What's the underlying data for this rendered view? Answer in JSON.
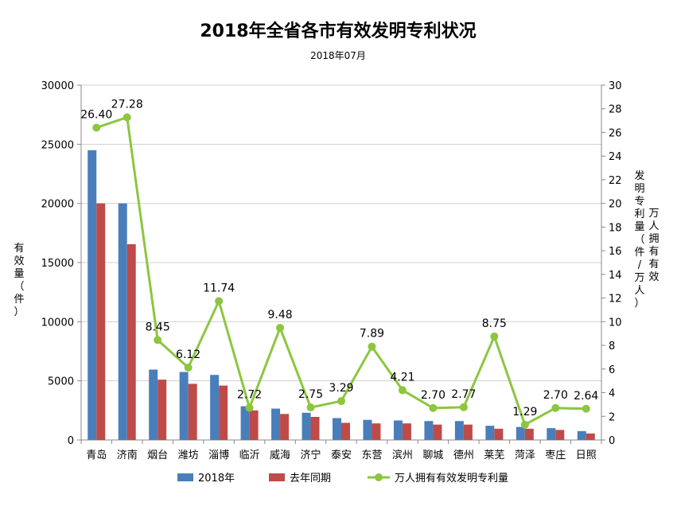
{
  "chart_data": {
    "type": "bar",
    "title": "2018年全省各市有效发明专利状况",
    "subtitle": "2018年07月",
    "categories": [
      "青岛",
      "济南",
      "烟台",
      "潍坊",
      "淄博",
      "临沂",
      "威海",
      "济宁",
      "泰安",
      "东营",
      "滨州",
      "聊城",
      "德州",
      "莱芜",
      "菏泽",
      "枣庄",
      "日照"
    ],
    "series": [
      {
        "name": "2018年",
        "type": "bar",
        "axis": "left",
        "color": "#4a7ebb",
        "values": [
          24500,
          20000,
          5950,
          5750,
          5500,
          2850,
          2650,
          2300,
          1850,
          1700,
          1650,
          1600,
          1600,
          1200,
          1100,
          1000,
          750
        ]
      },
      {
        "name": "去年同期",
        "type": "bar",
        "axis": "left",
        "color": "#be4b48",
        "values": [
          20000,
          16550,
          5100,
          4750,
          4600,
          2500,
          2200,
          1950,
          1450,
          1400,
          1400,
          1300,
          1300,
          950,
          950,
          850,
          550
        ]
      },
      {
        "name": "万人拥有有效发明专利量",
        "type": "line",
        "axis": "right",
        "color": "#8cc63f",
        "values": [
          26.4,
          27.28,
          8.45,
          6.12,
          11.74,
          2.72,
          9.48,
          2.75,
          3.29,
          7.89,
          4.21,
          2.7,
          2.77,
          8.75,
          1.29,
          2.7,
          2.64
        ],
        "labels": [
          "26.40",
          "27.28",
          "8.45",
          "6.12",
          "11.74",
          "2.72",
          "9.48",
          "2.75",
          "3.29",
          "7.89",
          "4.21",
          "2.70",
          "2.77",
          "8.75",
          "1.29",
          "2.70",
          "2.64"
        ]
      }
    ],
    "ylabel_left": "有效量（件）",
    "ylabel_right": "发明专利量（件/万人）万人拥有有效",
    "ylim_left": [
      0,
      30000
    ],
    "yticks_left": [
      "0",
      "5000",
      "10000",
      "15000",
      "20000",
      "25000",
      "30000"
    ],
    "ylim_right": [
      0,
      30
    ],
    "yticks_right": [
      "0",
      "2",
      "4",
      "6",
      "8",
      "10",
      "12",
      "14",
      "16",
      "18",
      "20",
      "22",
      "24",
      "26",
      "28",
      "30"
    ],
    "grid": true,
    "legend_position": "bottom"
  }
}
